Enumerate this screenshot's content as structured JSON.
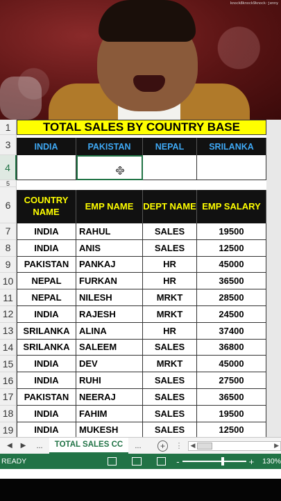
{
  "video": {
    "watermark": "knock8knock9knock·jenny"
  },
  "sheet": {
    "title": "TOTAL SALES BY COUNTRY BASE",
    "row_numbers": {
      "r1": "1",
      "r3": "3",
      "r4": "4",
      "r5": "5",
      "r6": "6",
      "data": [
        "7",
        "8",
        "9",
        "10",
        "11",
        "12",
        "13",
        "14",
        "15",
        "16",
        "17",
        "18",
        "19"
      ]
    },
    "country_headers": [
      "INDIA",
      "PAKISTAN",
      "NEPAL",
      "SRILANKA"
    ],
    "table_headers": [
      "COUNTRY NAME",
      "EMP NAME",
      "DEPT NAME",
      "EMP SALARY"
    ],
    "rows": [
      [
        "INDIA",
        "RAHUL",
        "SALES",
        "19500"
      ],
      [
        "INDIA",
        "ANIS",
        "SALES",
        "12500"
      ],
      [
        "PAKISTAN",
        "PANKAJ",
        "HR",
        "45000"
      ],
      [
        "NEPAL",
        "FURKAN",
        "HR",
        "36500"
      ],
      [
        "NEPAL",
        "NILESH",
        "MRKT",
        "28500"
      ],
      [
        "INDIA",
        "RAJESH",
        "MRKT",
        "24500"
      ],
      [
        "SRILANKA",
        "ALINA",
        "HR",
        "37400"
      ],
      [
        "SRILANKA",
        "SALEEM",
        "SALES",
        "36800"
      ],
      [
        "INDIA",
        "DEV",
        "MRKT",
        "45000"
      ],
      [
        "INDIA",
        "RUHI",
        "SALES",
        "27500"
      ],
      [
        "PAKISTAN",
        "NEERAJ",
        "SALES",
        "36500"
      ],
      [
        "INDIA",
        "FAHIM",
        "SALES",
        "19500"
      ],
      [
        "INDIA",
        "MUKESH",
        "SALES",
        "12500"
      ]
    ]
  },
  "tabs": {
    "prev": "◀",
    "next": "▶",
    "ellipsis_left": "...",
    "active_tab": "TOTAL SALES CC",
    "ellipsis_right": "...",
    "add": "+",
    "separator": "⋮"
  },
  "status": {
    "ready": "READY",
    "zoom_minus": "-",
    "zoom_plus": "+",
    "zoom": "130%"
  },
  "colors": {
    "excel_green": "#217346",
    "title_yellow": "#ffff00",
    "header_black": "#111111",
    "country_blue": "#3fa9f5"
  }
}
